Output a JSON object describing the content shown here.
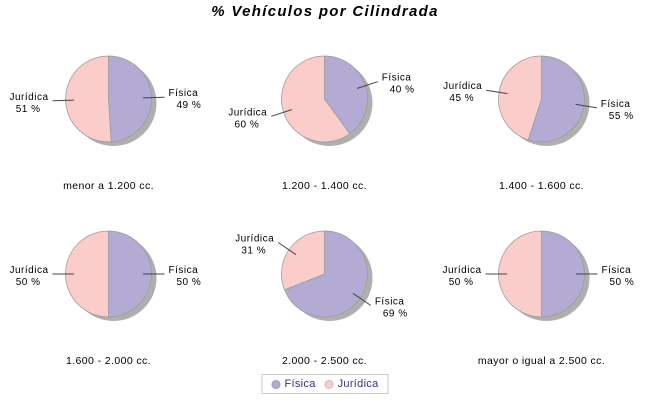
{
  "colors": {
    "fisica": "#B4ABD4",
    "juridica": "#FBCDCA",
    "shadow": "#9B9B9B",
    "slice_border": "#999999",
    "leader_line": "#444444",
    "legend_text": "#392F82",
    "legend_border": "#C9C9C9"
  },
  "legend": {
    "items": [
      {
        "label": "Física",
        "color_key": "fisica"
      },
      {
        "label": "Jurídica",
        "color_key": "juridica"
      }
    ]
  },
  "chart_data": {
    "type": "pie",
    "title": "% Vehículos por Cilindrada",
    "unit": "%",
    "series_names": [
      "Física",
      "Jurídica"
    ],
    "legend_position": "bottom",
    "charts": [
      {
        "category": "menor a 1.200 cc.",
        "slices": [
          {
            "name": "Física",
            "value": 49
          },
          {
            "name": "Jurídica",
            "value": 51
          }
        ]
      },
      {
        "category": "1.200 - 1.400 cc.",
        "slices": [
          {
            "name": "Física",
            "value": 40
          },
          {
            "name": "Jurídica",
            "value": 60
          }
        ]
      },
      {
        "category": "1.400 - 1.600 cc.",
        "slices": [
          {
            "name": "Física",
            "value": 55
          },
          {
            "name": "Jurídica",
            "value": 45
          }
        ]
      },
      {
        "category": "1.600 - 2.000 cc.",
        "slices": [
          {
            "name": "Física",
            "value": 50
          },
          {
            "name": "Jurídica",
            "value": 50
          }
        ]
      },
      {
        "category": "2.000 - 2.500 cc.",
        "slices": [
          {
            "name": "Física",
            "value": 69
          },
          {
            "name": "Jurídica",
            "value": 31
          }
        ]
      },
      {
        "category": "mayor o igual a 2.500 cc.",
        "slices": [
          {
            "name": "Física",
            "value": 50
          },
          {
            "name": "Jurídica",
            "value": 50
          }
        ]
      }
    ]
  }
}
